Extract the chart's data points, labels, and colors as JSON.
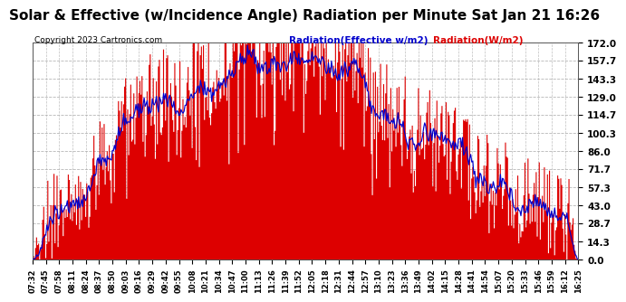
{
  "title": "Solar & Effective (w/Incidence Angle) Radiation per Minute Sat Jan 21 16:26",
  "copyright": "Copyright 2023 Cartronics.com",
  "legend_blue": "Radiation(Effective w/m2)",
  "legend_red": "Radiation(W/m2)",
  "yticks": [
    0.0,
    14.3,
    28.7,
    43.0,
    57.3,
    71.7,
    86.0,
    100.3,
    114.7,
    129.0,
    143.3,
    157.7,
    172.0
  ],
  "ylim": [
    0,
    172.0
  ],
  "bg_color": "#ffffff",
  "grid_color": "#aaaaaa",
  "fill_color": "#dd0000",
  "line_color": "#0000cc",
  "title_fontsize": 11.5,
  "xtick_labels": [
    "07:32",
    "07:45",
    "07:58",
    "08:11",
    "08:24",
    "08:37",
    "08:50",
    "09:03",
    "09:16",
    "09:29",
    "09:42",
    "09:55",
    "10:08",
    "10:21",
    "10:34",
    "10:47",
    "11:00",
    "11:13",
    "11:26",
    "11:39",
    "11:52",
    "12:05",
    "12:18",
    "12:31",
    "12:44",
    "12:57",
    "13:10",
    "13:23",
    "13:36",
    "13:49",
    "14:02",
    "14:15",
    "14:28",
    "14:41",
    "14:54",
    "15:07",
    "15:20",
    "15:33",
    "15:46",
    "15:59",
    "16:12",
    "16:25"
  ]
}
